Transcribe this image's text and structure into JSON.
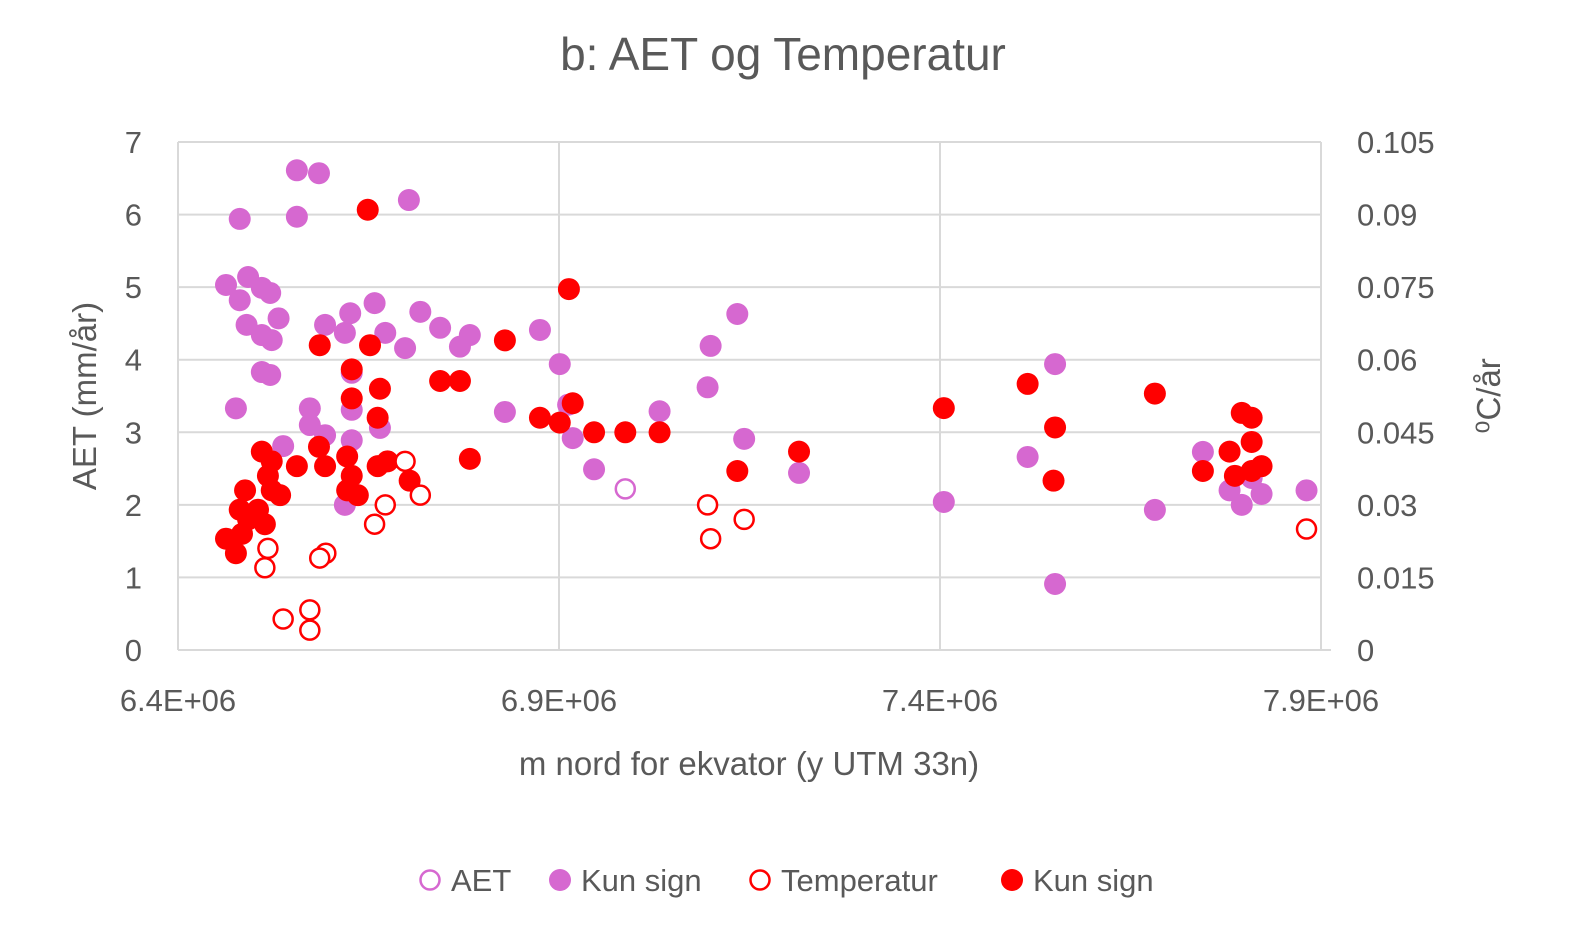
{
  "chart_data": {
    "type": "scatter",
    "title": "b: AET og Temperatur",
    "xlabel": "m nord for ekvator (y UTM 33n)",
    "ylabel": "AET (mm/år)",
    "y2label": "⁰C/år",
    "xlim": [
      6400000,
      7900000
    ],
    "ylim": [
      0,
      7
    ],
    "y2lim": [
      0,
      0.105
    ],
    "xticks": [
      "6.4E+06",
      "6.9E+06",
      "7.4E+06",
      "7.9E+06"
    ],
    "xtick_values": [
      6400000,
      6900000,
      7400000,
      7900000
    ],
    "yticks": [
      "0",
      "1",
      "2",
      "3",
      "4",
      "5",
      "6",
      "7"
    ],
    "y2ticks": [
      "0",
      "0.015",
      "0.03",
      "0.045",
      "0.06",
      "0.075",
      "0.09",
      "0.105"
    ],
    "grid": true,
    "legend_position": "bottom",
    "colors": {
      "aet": "#D668D0",
      "temp": "#FF0000"
    },
    "series": [
      {
        "name": "AET",
        "axis": "left",
        "marker": "hollow",
        "color": "#D668D0",
        "points": [
          [
            6987000,
            2.22
          ]
        ]
      },
      {
        "name": "Kun sign",
        "axis": "left",
        "marker": "filled",
        "color": "#D668D0",
        "points": [
          [
            6481000,
            5.94
          ],
          [
            6556000,
            6.61
          ],
          [
            6585000,
            6.57
          ],
          [
            6556000,
            5.97
          ],
          [
            6703000,
            6.2
          ],
          [
            6463000,
            5.03
          ],
          [
            6492000,
            5.14
          ],
          [
            6481000,
            4.82
          ],
          [
            6510000,
            4.99
          ],
          [
            6521000,
            4.92
          ],
          [
            6490000,
            4.48
          ],
          [
            6532000,
            4.57
          ],
          [
            6510000,
            4.34
          ],
          [
            6523000,
            4.27
          ],
          [
            6593000,
            4.48
          ],
          [
            6626000,
            4.64
          ],
          [
            6658000,
            4.78
          ],
          [
            6619000,
            4.37
          ],
          [
            6672000,
            4.37
          ],
          [
            6698000,
            4.16
          ],
          [
            6718000,
            4.66
          ],
          [
            6744000,
            4.44
          ],
          [
            6770000,
            4.18
          ],
          [
            6783000,
            4.34
          ],
          [
            6875000,
            4.41
          ],
          [
            6510000,
            3.83
          ],
          [
            6521000,
            3.79
          ],
          [
            6628000,
            3.82
          ],
          [
            6476000,
            3.33
          ],
          [
            6573000,
            3.33
          ],
          [
            6573000,
            3.1
          ],
          [
            6593000,
            2.96
          ],
          [
            6628000,
            3.31
          ],
          [
            6628000,
            2.89
          ],
          [
            6665000,
            3.06
          ],
          [
            6538000,
            2.81
          ],
          [
            6829000,
            3.28
          ],
          [
            6901000,
            3.94
          ],
          [
            6912000,
            3.38
          ],
          [
            6918000,
            2.92
          ],
          [
            6946000,
            2.49
          ],
          [
            7032000,
            3.29
          ],
          [
            7095000,
            3.62
          ],
          [
            7099000,
            4.19
          ],
          [
            7134000,
            4.63
          ],
          [
            7143000,
            2.91
          ],
          [
            7215000,
            2.44
          ],
          [
            7405000,
            2.04
          ],
          [
            7515000,
            2.66
          ],
          [
            7551000,
            3.94
          ],
          [
            7551000,
            0.91
          ],
          [
            7682000,
            1.93
          ],
          [
            7745000,
            2.73
          ],
          [
            7780000,
            2.2
          ],
          [
            7796000,
            2.0
          ],
          [
            7809000,
            2.37
          ],
          [
            7822000,
            2.15
          ],
          [
            7881000,
            2.2
          ],
          [
            6619000,
            2.0
          ]
        ]
      },
      {
        "name": "Temperatur",
        "axis": "right",
        "marker": "hollow",
        "color": "#FF0000",
        "points": [
          [
            6698000,
            0.039
          ],
          [
            6718000,
            0.032
          ],
          [
            6672000,
            0.03
          ],
          [
            6658000,
            0.026
          ],
          [
            6518000,
            0.021
          ],
          [
            6514000,
            0.017
          ],
          [
            6594000,
            0.02
          ],
          [
            6586000,
            0.019
          ],
          [
            6538000,
            0.0064
          ],
          [
            6573000,
            0.0083
          ],
          [
            6573000,
            0.0041
          ],
          [
            7095000,
            0.03
          ],
          [
            7099000,
            0.023
          ],
          [
            7143000,
            0.027
          ],
          [
            7881000,
            0.025
          ]
        ]
      },
      {
        "name": "Kun sign",
        "axis": "right",
        "marker": "filled",
        "color": "#FF0000",
        "points": [
          [
            6649000,
            0.091
          ],
          [
            6913000,
            0.0746
          ],
          [
            6586000,
            0.063
          ],
          [
            6652000,
            0.063
          ],
          [
            6829000,
            0.064
          ],
          [
            6744000,
            0.0556
          ],
          [
            6770000,
            0.0556
          ],
          [
            6628000,
            0.058
          ],
          [
            6628000,
            0.052
          ],
          [
            6665000,
            0.054
          ],
          [
            6662000,
            0.048
          ],
          [
            6918000,
            0.051
          ],
          [
            6875000,
            0.048
          ],
          [
            6901000,
            0.047
          ],
          [
            6946000,
            0.045
          ],
          [
            6987000,
            0.045
          ],
          [
            7032000,
            0.045
          ],
          [
            6783000,
            0.0395
          ],
          [
            6585000,
            0.042
          ],
          [
            6510000,
            0.041
          ],
          [
            6556000,
            0.038
          ],
          [
            6593000,
            0.038
          ],
          [
            6622000,
            0.04
          ],
          [
            6662000,
            0.038
          ],
          [
            6675000,
            0.039
          ],
          [
            6704000,
            0.035
          ],
          [
            6523000,
            0.039
          ],
          [
            6518000,
            0.036
          ],
          [
            6488000,
            0.033
          ],
          [
            6523000,
            0.033
          ],
          [
            6534000,
            0.032
          ],
          [
            6622000,
            0.033
          ],
          [
            6636000,
            0.032
          ],
          [
            6628000,
            0.036
          ],
          [
            6481000,
            0.029
          ],
          [
            6505000,
            0.029
          ],
          [
            6514000,
            0.026
          ],
          [
            6492000,
            0.027
          ],
          [
            6463000,
            0.023
          ],
          [
            6476000,
            0.02
          ],
          [
            6484000,
            0.024
          ],
          [
            7134000,
            0.037
          ],
          [
            7215000,
            0.041
          ],
          [
            7405000,
            0.05
          ],
          [
            7515000,
            0.055
          ],
          [
            7551000,
            0.046
          ],
          [
            7549000,
            0.035
          ],
          [
            7682000,
            0.053
          ],
          [
            7745000,
            0.037
          ],
          [
            7780000,
            0.041
          ],
          [
            7796000,
            0.049
          ],
          [
            7809000,
            0.048
          ],
          [
            7809000,
            0.043
          ],
          [
            7787000,
            0.036
          ],
          [
            7822000,
            0.038
          ],
          [
            7809000,
            0.037
          ]
        ]
      }
    ]
  }
}
